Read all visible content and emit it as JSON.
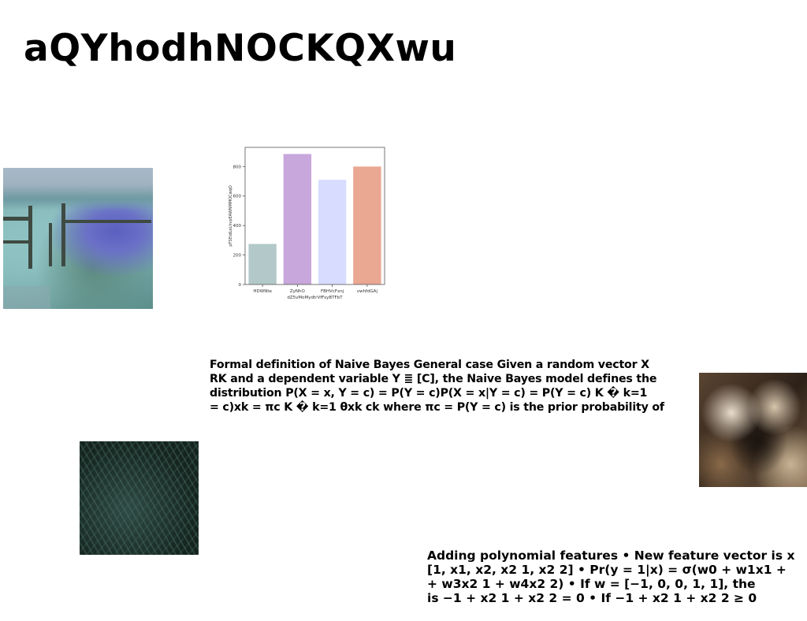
{
  "page": {
    "title": "aQYhodhNOCKQXwu"
  },
  "images": {
    "garden": "garden-photo",
    "fern": "fern-photo",
    "texture": "marble-texture-photo"
  },
  "chart_data": {
    "type": "bar",
    "categories": [
      "HDWNte",
      "ZyNhO",
      "FBHVcFxnj",
      "vwhfdGAj"
    ],
    "values": [
      275,
      885,
      710,
      800
    ],
    "colors": [
      "#b3c9c9",
      "#c8a7dc",
      "#d8dcff",
      "#eaa791"
    ],
    "xlabel": "dZ5vMoMydtrVfFsyBTFbT",
    "ylabel": "pFSEtdLeLhvpEAWNMMOCwqO",
    "yticks": [
      0,
      200,
      400,
      600,
      800
    ],
    "ylim": [
      0,
      930
    ],
    "grid": false
  },
  "paragraphs": {
    "p1": [
      "Formal definition of Naive Bayes General case Given a random vector X",
      "RK and a dependent variable Y ≣ [C], the Naive Bayes model defines the",
      "distribution P(X = x, Y = c) = P(Y = c)P(X = x|Y = c) = P(Y = c) K � k=1",
      "= c)xk = πc K � k=1 θxk ck where πc = P(Y = c) is the prior probability of"
    ],
    "p2": [
      "Adding polynomial features • New feature vector is x",
      "[1, x1, x2, x2 1, x2 2] • Pr(y = 1|x) = σ(w0 + w1x1 +",
      "+ w3x2 1 + w4x2 2) • If w = [−1, 0, 0, 1, 1], the",
      "is −1 + x2 1 + x2 2 = 0 • If −1 + x2 1 + x2 2 ≥ 0"
    ]
  }
}
